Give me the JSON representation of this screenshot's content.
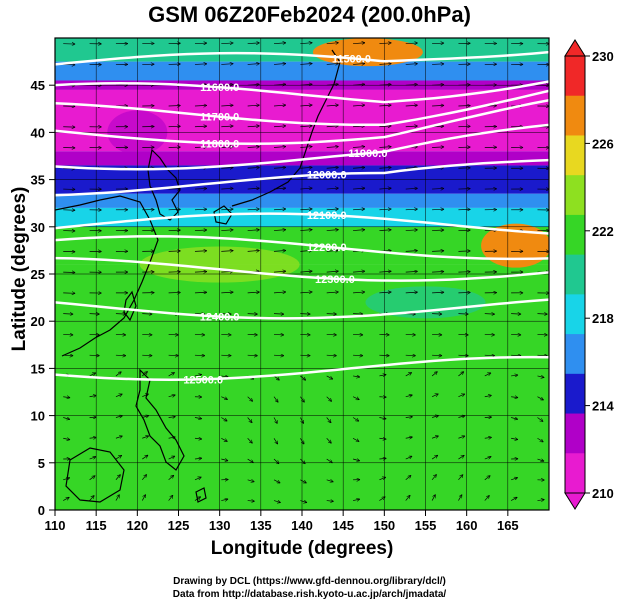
{
  "title": "GSM 06Z20Feb2024 (200.0hPa)",
  "xaxis": {
    "label": "Longitude (degrees)",
    "ticks": [
      "110",
      "115",
      "120",
      "125",
      "130",
      "135",
      "140",
      "145",
      "150",
      "155",
      "160",
      "165"
    ],
    "range": [
      110,
      170
    ]
  },
  "yaxis": {
    "label": "Latitude (degrees)",
    "ticks": [
      "0",
      "5",
      "10",
      "15",
      "20",
      "25",
      "30",
      "35",
      "40",
      "45"
    ],
    "range": [
      0,
      50
    ]
  },
  "colorbar": {
    "range": [
      210,
      230
    ],
    "labels": [
      "230",
      "226",
      "222",
      "218",
      "214",
      "210"
    ],
    "colors": {
      "c210": "#e81bd0",
      "c212": "#b000c8",
      "c214": "#1a1acc",
      "c216": "#2f8ff0",
      "c218": "#18d4e8",
      "c220": "#20c890",
      "c222": "#36d626",
      "c224": "#8ee020",
      "c226": "#e8d820",
      "c228": "#f08a10",
      "c230": "#f02828"
    }
  },
  "contours": [
    {
      "label": "11500.0",
      "lat": 47.2
    },
    {
      "label": "11600.0",
      "lat": 44.0
    },
    {
      "label": "11700.0",
      "lat": 42.0
    },
    {
      "label": "11800.0",
      "lat": 40.0
    },
    {
      "label": "11900.0",
      "lat": 37.3
    },
    {
      "label": "12000.0",
      "lat": 34.5
    },
    {
      "label": "12100.0",
      "lat": 30.2
    },
    {
      "label": "12200.0",
      "lat": 27.8
    },
    {
      "label": "12300.0",
      "lat": 25.5
    },
    {
      "label": "12400.0",
      "lat": 21.5
    },
    {
      "label": "12500.0",
      "lat": 15.0
    }
  ],
  "credits": [
    "Drawing by DCL (https://www.gfd-dennou.org/library/dcl/)",
    "Data from http://database.rish.kyoto-u.ac.jp/arch/jmadata/"
  ]
}
